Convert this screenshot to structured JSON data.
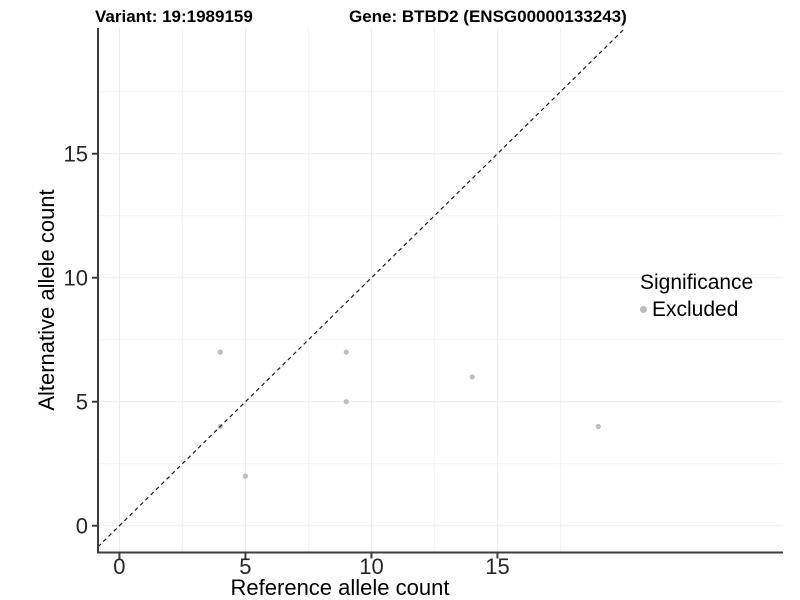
{
  "chart_data": {
    "type": "scatter",
    "titles": [
      "Variant: 19:1989159",
      "Gene: BTBD2 (ENSG00000133243)"
    ],
    "xlabel": "Reference allele count",
    "ylabel": "Alternative allele count",
    "x_ticks": [
      0,
      5,
      10,
      15
    ],
    "y_ticks": [
      0,
      5,
      10,
      15
    ],
    "x_minor_ticks": [
      2.5,
      7.5,
      12.5,
      17.5
    ],
    "y_minor_ticks": [
      2.5,
      7.5,
      12.5,
      17.5
    ],
    "xlim": [
      -0.85,
      26.33
    ],
    "ylim": [
      -1.08,
      20.07
    ],
    "grid": "major_and_minor",
    "series": [
      {
        "name": "Excluded",
        "color": "#bdbdbd",
        "points": [
          [
            4,
            4
          ],
          [
            4,
            7
          ],
          [
            5,
            2
          ],
          [
            9,
            5
          ],
          [
            9,
            7
          ],
          [
            14,
            6
          ],
          [
            19,
            4
          ]
        ]
      }
    ],
    "identity_line": {
      "slope": 1,
      "intercept": 0,
      "style": "dashed",
      "color": "#1a1a1a"
    },
    "legend": {
      "title": "Significance",
      "position": "right-inside",
      "items": [
        {
          "label": "Excluded",
          "color": "#bdbdbd"
        }
      ]
    },
    "colors": {
      "grid_major": "#ebebeb",
      "grid_minor": "#f3f3f3",
      "axis_line": "#3c3c3c",
      "tick_label": "#262626"
    }
  }
}
